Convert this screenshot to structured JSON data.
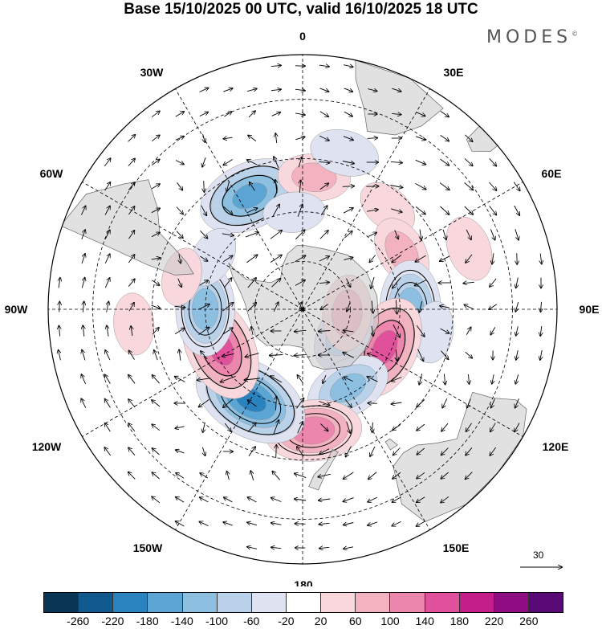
{
  "title": "Base 15/10/2025 00 UTC, valid 16/10/2025 18 UTC",
  "brand": "MODES",
  "brand_mark": "©",
  "projection": "south-polar-stereographic",
  "longitude_labels": {
    "lon_0": "0",
    "lon_30e": "30E",
    "lon_60e": "60E",
    "lon_90e": "90E",
    "lon_120e": "120E",
    "lon_150e": "150E",
    "lon_180": "180",
    "lon_150w": "150W",
    "lon_120w": "120W",
    "lon_90w": "90W",
    "lon_60w": "60W",
    "lon_30w": "30W"
  },
  "reference_vector": {
    "label": "30"
  },
  "colorbar": {
    "colors": [
      "#0a3555",
      "#115a8f",
      "#2a83bf",
      "#5aa5d4",
      "#8dbfe1",
      "#b9d2ea",
      "#dfe3f1",
      "#ffffff",
      "#f8d8dc",
      "#f3b2c0",
      "#ed86ac",
      "#e1509a",
      "#c41e8a",
      "#8e0d83",
      "#5a0a76"
    ],
    "ticks": [
      "-260",
      "-220",
      "-180",
      "-140",
      "-100",
      "-60",
      "-20",
      "20",
      "60",
      "100",
      "140",
      "180",
      "220",
      "260"
    ]
  },
  "anomaly_centers": [
    {
      "lon": -25,
      "lat": -52,
      "value": -160
    },
    {
      "lon": 5,
      "lat": -50,
      "value": 70
    },
    {
      "lon": 40,
      "lat": -50,
      "value": 40
    },
    {
      "lon": 60,
      "lat": -55,
      "value": 70
    },
    {
      "lon": 90,
      "lat": -57,
      "value": -140
    },
    {
      "lon": 100,
      "lat": -50,
      "value": -40
    },
    {
      "lon": 115,
      "lat": -62,
      "value": 160
    },
    {
      "lon": 120,
      "lat": -75,
      "value": -90
    },
    {
      "lon": 95,
      "lat": -76,
      "value": 80
    },
    {
      "lon": 150,
      "lat": -62,
      "value": -110
    },
    {
      "lon": 175,
      "lat": -53,
      "value": 140
    },
    {
      "lon": -150,
      "lat": -58,
      "value": -200
    },
    {
      "lon": -115,
      "lat": -62,
      "value": 170
    },
    {
      "lon": -90,
      "lat": -60,
      "value": -130
    },
    {
      "lon": -60,
      "lat": -58,
      "value": -40
    },
    {
      "lon": -75,
      "lat": -52,
      "value": 30
    },
    {
      "lon": -95,
      "lat": -40,
      "value": 40
    },
    {
      "lon": 15,
      "lat": -42,
      "value": -60
    },
    {
      "lon": -5,
      "lat": -60,
      "value": -40
    },
    {
      "lon": 70,
      "lat": -38,
      "value": 50
    }
  ]
}
